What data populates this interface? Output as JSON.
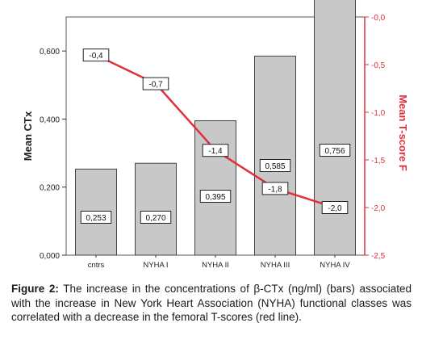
{
  "chart_data": {
    "type": "bar",
    "categories": [
      "cntrs",
      "NYHA I",
      "NYHA II",
      "NYHA III",
      "NYHA IV"
    ],
    "series": [
      {
        "name": "",
        "kind": "bar",
        "axis": "left",
        "values": [
          0.253,
          0.27,
          0.395,
          0.585,
          0.756
        ],
        "labels": [
          "0,253",
          "0,270",
          "0,395",
          "0,585",
          "0,756"
        ],
        "color": "#c8c8c8"
      },
      {
        "name": "",
        "kind": "line",
        "axis": "right",
        "values": [
          -0.4,
          -0.7,
          -1.4,
          -1.8,
          -2.0
        ],
        "labels": [
          "-0,4",
          "-0,7",
          "-1,4",
          "-1,8",
          "-2,0"
        ],
        "color": "#e0303a"
      }
    ],
    "ylabel": "Mean CTx",
    "ylim": [
      0,
      0.7
    ],
    "yticks": [
      0,
      0.2,
      0.4,
      0.6
    ],
    "yticklabels": [
      "0,000",
      "0,200",
      "0,400",
      "0,600"
    ],
    "y2label": "Mean T-score F",
    "y2lim": [
      -2.5,
      0
    ],
    "y2ticks": [
      0,
      -0.5,
      -1,
      -1.5,
      -2,
      -2.5
    ],
    "y2ticklabels": [
      "-0,0",
      "-0,5",
      "-1,0",
      "-1,5",
      "-2,0",
      "-2,5"
    ],
    "y2color": "#e0303a",
    "grid": false
  },
  "caption": {
    "label": "Figure 2:",
    "text": "The increase in the concentrations of β-CTx (ng/ml) (bars) associated with the increase in New York Heart Association (NYHA) functional classes was correlated with a decrease in the femoral T-scores (red line)."
  }
}
